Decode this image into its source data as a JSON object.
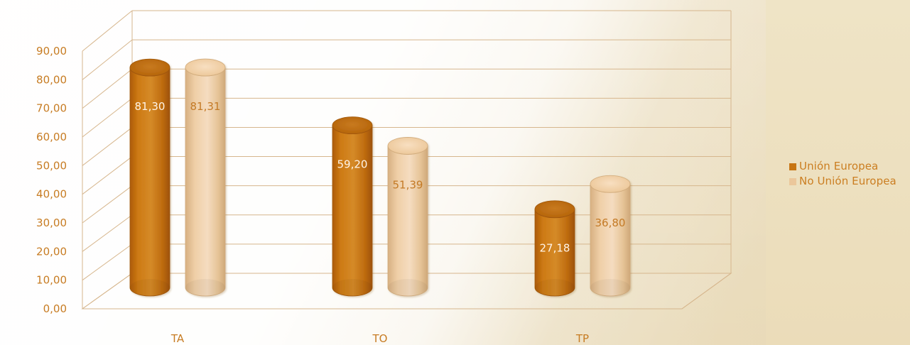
{
  "chart_data": {
    "type": "bar",
    "title": "",
    "xlabel": "",
    "ylabel": "",
    "ylim": [
      0,
      90
    ],
    "yticks": [
      "0,00",
      "10,00",
      "20,00",
      "30,00",
      "40,00",
      "50,00",
      "60,00",
      "70,00",
      "80,00",
      "90,00"
    ],
    "categories": [
      "TA",
      "TO",
      "TP"
    ],
    "series": [
      {
        "name": "Unión Europea",
        "values": [
          81.3,
          59.2,
          27.18
        ],
        "labels": [
          "81,30",
          "59,20",
          "27,18"
        ]
      },
      {
        "name": "No Unión Europea",
        "values": [
          81.31,
          51.39,
          36.8
        ],
        "labels": [
          "81,31",
          "51,39",
          "36,80"
        ]
      }
    ],
    "grid": true,
    "legend_position": "right",
    "colors": {
      "text": "#c77c23",
      "grid": "#d7b98c",
      "series_1_side": "#c77513",
      "series_1_top": "#b86307",
      "series_2_side": "#ebc79b",
      "series_2_top": "#f0d1ab"
    }
  }
}
